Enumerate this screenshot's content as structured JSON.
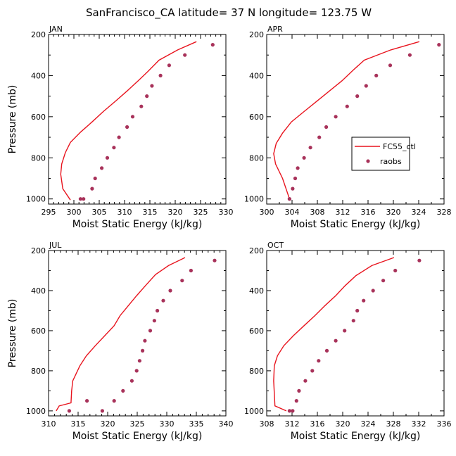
{
  "figure_title": "SanFrancisco_CA  latitude= 37 N longitude= 123.75 W",
  "colors": {
    "model": "#e8141e",
    "obs": "#a8325a"
  },
  "legend": {
    "model_label": "FC55_ctl",
    "obs_label": "raobs",
    "placement": "right-middle of APR panel"
  },
  "chart_data": [
    {
      "type": "line",
      "panel_label": "JAN",
      "xlabel": "Moist Static Energy (kJ/kg)",
      "ylabel": "Pressure (mb)",
      "xlim": [
        295,
        330
      ],
      "xticks": [
        295,
        300,
        305,
        310,
        315,
        320,
        325,
        330
      ],
      "xticks_minor": [
        296,
        297,
        298,
        299,
        301,
        302,
        303,
        304,
        306,
        307,
        308,
        309,
        311,
        312,
        313,
        314,
        316,
        317,
        318,
        319,
        321,
        322,
        323,
        324,
        326,
        327,
        328,
        329
      ],
      "ylim": [
        1025,
        200
      ],
      "yticks": [
        200,
        400,
        600,
        800,
        1000
      ],
      "yticks_minor": [
        300,
        500,
        700,
        900
      ],
      "series": [
        {
          "name": "FC55_ctl",
          "style": "line",
          "x": [
            324.2,
            320.5,
            316.8,
            314.6,
            312.7,
            310.5,
            308.2,
            305.8,
            303.6,
            301.3,
            299.3,
            298.3,
            297.6,
            297.4,
            297.8,
            299.3
          ],
          "y": [
            235,
            275,
            325,
            380,
            425,
            475,
            525,
            575,
            625,
            675,
            725,
            775,
            830,
            880,
            950,
            1005
          ]
        },
        {
          "name": "raobs",
          "style": "points",
          "x": [
            327.4,
            321.9,
            318.8,
            317.1,
            315.4,
            314.4,
            313.3,
            311.6,
            310.5,
            308.9,
            307.9,
            306.6,
            305.5,
            304.2,
            303.6,
            301.9,
            301.3
          ],
          "y": [
            250,
            300,
            350,
            400,
            450,
            500,
            550,
            600,
            650,
            700,
            750,
            800,
            850,
            900,
            950,
            1000,
            1000
          ]
        }
      ]
    },
    {
      "type": "line",
      "panel_label": "APR",
      "xlabel": "Moist Static Energy (kJ/kg)",
      "ylabel": "",
      "xlim": [
        300,
        328
      ],
      "xticks": [
        300,
        304,
        308,
        312,
        316,
        320,
        324,
        328
      ],
      "xticks_minor": [
        302,
        306,
        310,
        314,
        318,
        322,
        326
      ],
      "ylim": [
        1025,
        200
      ],
      "yticks": [
        200,
        400,
        600,
        800,
        1000
      ],
      "yticks_minor": [
        300,
        500,
        700,
        900
      ],
      "series": [
        {
          "name": "FC55_ctl",
          "style": "line",
          "x": [
            324.1,
            319.6,
            315.4,
            313.6,
            311.9,
            309.9,
            307.9,
            305.9,
            303.9,
            302.5,
            301.5,
            301.1,
            301.4,
            302.5,
            303.6
          ],
          "y": [
            235,
            275,
            325,
            375,
            425,
            475,
            525,
            575,
            625,
            680,
            730,
            780,
            830,
            900,
            1000
          ]
        },
        {
          "name": "raobs",
          "style": "points",
          "x": [
            327.2,
            322.6,
            319.5,
            317.3,
            315.7,
            314.3,
            312.7,
            310.9,
            309.4,
            308.3,
            306.9,
            305.9,
            304.9,
            304.5,
            304.1,
            303.6,
            303.6
          ],
          "y": [
            250,
            300,
            350,
            400,
            450,
            500,
            550,
            600,
            650,
            700,
            750,
            800,
            850,
            900,
            950,
            1000,
            1000
          ]
        }
      ]
    },
    {
      "type": "line",
      "panel_label": "JUL",
      "xlabel": "Moist Static Energy (kJ/kg)",
      "ylabel": "Pressure (mb)",
      "xlim": [
        310,
        340
      ],
      "xticks": [
        310,
        315,
        320,
        325,
        330,
        335,
        340
      ],
      "xticks_minor": [
        311,
        312,
        313,
        314,
        316,
        317,
        318,
        319,
        321,
        322,
        323,
        324,
        326,
        327,
        328,
        329,
        331,
        332,
        333,
        334,
        336,
        337,
        338,
        339
      ],
      "ylim": [
        1025,
        200
      ],
      "yticks": [
        200,
        400,
        600,
        800,
        1000
      ],
      "yticks_minor": [
        300,
        500,
        700,
        900
      ],
      "series": [
        {
          "name": "FC55_ctl",
          "style": "line",
          "x": [
            333.1,
            330.3,
            328.1,
            326.4,
            324.9,
            323.5,
            322.1,
            321.1,
            319.5,
            317.9,
            316.4,
            315.3,
            314.1,
            313.9,
            313.8,
            311.8,
            311.3
          ],
          "y": [
            235,
            275,
            320,
            375,
            425,
            475,
            525,
            575,
            625,
            675,
            725,
            775,
            850,
            900,
            960,
            975,
            1000
          ]
        },
        {
          "name": "raobs",
          "style": "points",
          "x": [
            338.1,
            334.1,
            332.6,
            330.6,
            329.4,
            328.4,
            327.9,
            327.2,
            326.3,
            325.9,
            325.4,
            324.9,
            324.1,
            322.6,
            321.1,
            319.1,
            316.5,
            313.5
          ],
          "y": [
            250,
            300,
            350,
            400,
            450,
            500,
            550,
            600,
            650,
            700,
            750,
            800,
            850,
            900,
            950,
            1000,
            950,
            1000
          ]
        }
      ]
    },
    {
      "type": "line",
      "panel_label": "OCT",
      "xlabel": "Moist Static Energy (kJ/kg)",
      "ylabel": "",
      "xlim": [
        308,
        336
      ],
      "xticks": [
        308,
        312,
        316,
        320,
        324,
        328,
        332,
        336
      ],
      "xticks_minor": [
        310,
        314,
        318,
        322,
        326,
        330,
        334
      ],
      "ylim": [
        1025,
        200
      ],
      "yticks": [
        200,
        400,
        600,
        800,
        1000
      ],
      "yticks_minor": [
        300,
        500,
        700,
        900
      ],
      "series": [
        {
          "name": "FC55_ctl",
          "style": "line",
          "x": [
            328.1,
            324.6,
            322.1,
            320.4,
            318.9,
            317.2,
            315.6,
            313.9,
            312.2,
            310.7,
            309.7,
            309.2,
            309.1,
            309.3,
            311.1
          ],
          "y": [
            235,
            275,
            325,
            375,
            425,
            475,
            525,
            575,
            625,
            675,
            725,
            775,
            850,
            975,
            1000
          ]
        },
        {
          "name": "raobs",
          "style": "points",
          "x": [
            332.1,
            328.3,
            326.4,
            324.8,
            323.3,
            322.3,
            321.7,
            320.3,
            318.9,
            317.5,
            316.2,
            315.2,
            314.1,
            313.1,
            312.7,
            312.1,
            311.6
          ],
          "y": [
            250,
            300,
            350,
            400,
            450,
            500,
            550,
            600,
            650,
            700,
            750,
            800,
            850,
            900,
            950,
            1000,
            1000
          ]
        }
      ]
    }
  ]
}
